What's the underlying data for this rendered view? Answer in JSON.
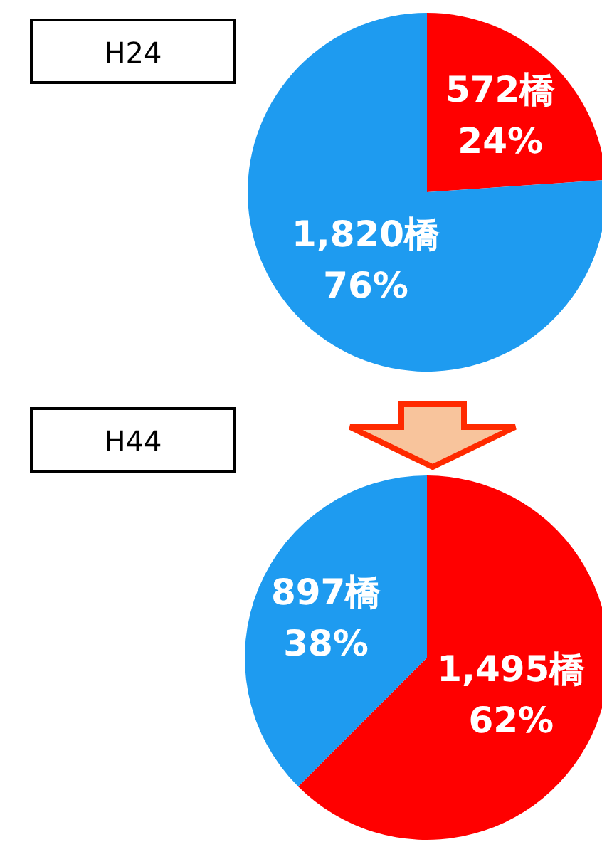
{
  "chart_data": [
    {
      "type": "pie",
      "title": "H24",
      "categories": [
        null,
        null
      ],
      "values": [
        572,
        1820
      ],
      "colors": [
        "#ff0000",
        "#1e9bf0"
      ],
      "value_labels": [
        "572橋\n24%",
        "1,820橋\n76%"
      ]
    },
    {
      "type": "pie",
      "title": "H44",
      "categories": [
        null,
        null
      ],
      "values": [
        1495,
        897
      ],
      "colors": [
        "#ff0000",
        "#1e9bf0"
      ],
      "value_labels": [
        "1,495橋\n62%",
        "897橋\n38%"
      ]
    }
  ]
}
